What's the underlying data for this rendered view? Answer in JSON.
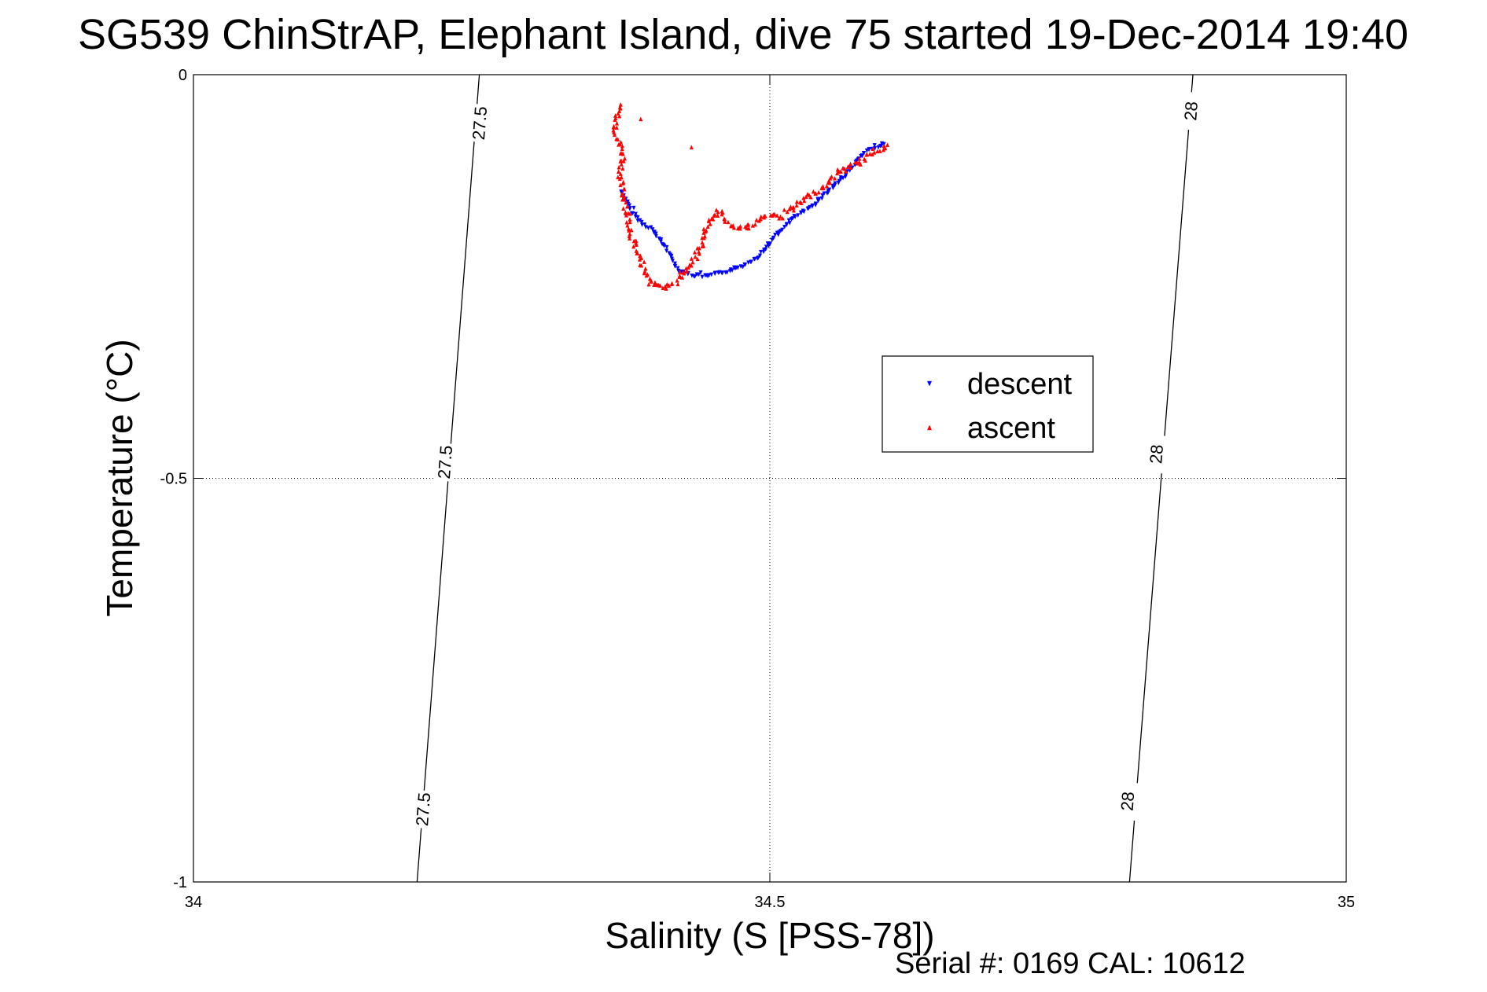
{
  "chart_data": {
    "type": "scatter",
    "title": "SG539 ChinStrAP, Elephant Island, dive 75 started 19-Dec-2014 19:40",
    "xlabel": "Salinity (S [PSS-78])",
    "ylabel": "Temperature (°C)",
    "xlim": [
      34,
      35
    ],
    "ylim": [
      -1,
      0
    ],
    "x_ticks": [
      34,
      34.5,
      35
    ],
    "x_tick_labels": [
      "34",
      "34.5",
      "35"
    ],
    "y_ticks": [
      0,
      -0.5,
      -1
    ],
    "y_tick_labels": [
      "0",
      "-0.5",
      "-1"
    ],
    "grid": true,
    "legend_position": "center-right",
    "footer": "Serial #: 0169 CAL: 10612",
    "density_contours": [
      {
        "label": "27.5",
        "points": [
          [
            34.248,
            0
          ],
          [
            34.194,
            -1
          ]
        ],
        "label_positions": [
          [
            34.248,
            -0.06
          ],
          [
            34.218,
            -0.48
          ],
          [
            34.199,
            -0.91
          ]
        ]
      },
      {
        "label": "28",
        "points": [
          [
            34.867,
            0
          ],
          [
            34.812,
            -1
          ]
        ],
        "label_positions": [
          [
            34.865,
            -0.045
          ],
          [
            34.835,
            -0.47
          ],
          [
            34.81,
            -0.9
          ]
        ]
      }
    ],
    "series": [
      {
        "name": "descent",
        "color": "#0000ff",
        "marker": "triangle-down",
        "path": [
          [
            34.372,
            -0.145
          ],
          [
            34.38,
            -0.17
          ],
          [
            34.39,
            -0.185
          ],
          [
            34.397,
            -0.19
          ],
          [
            34.41,
            -0.215
          ],
          [
            34.42,
            -0.24
          ],
          [
            34.43,
            -0.248
          ],
          [
            34.445,
            -0.25
          ],
          [
            34.46,
            -0.245
          ],
          [
            34.475,
            -0.238
          ],
          [
            34.49,
            -0.225
          ],
          [
            34.505,
            -0.2
          ],
          [
            34.52,
            -0.178
          ],
          [
            34.535,
            -0.165
          ],
          [
            34.55,
            -0.145
          ],
          [
            34.565,
            -0.125
          ],
          [
            34.58,
            -0.1
          ],
          [
            34.59,
            -0.09
          ],
          [
            34.6,
            -0.085
          ]
        ],
        "points": [
          [
            34.371,
            -0.145
          ],
          [
            34.382,
            -0.165
          ],
          [
            34.4,
            -0.195
          ],
          [
            34.44,
            -0.245
          ],
          [
            34.47,
            -0.24
          ],
          [
            34.5,
            -0.21
          ],
          [
            34.54,
            -0.16
          ],
          [
            34.58,
            -0.1
          ],
          [
            34.599,
            -0.086
          ]
        ]
      },
      {
        "name": "ascent",
        "color": "#ff0000",
        "marker": "triangle-up",
        "path": [
          [
            34.37,
            -0.04
          ],
          [
            34.366,
            -0.07
          ],
          [
            34.373,
            -0.1
          ],
          [
            34.37,
            -0.13
          ],
          [
            34.375,
            -0.16
          ],
          [
            34.38,
            -0.2
          ],
          [
            34.39,
            -0.24
          ],
          [
            34.398,
            -0.26
          ],
          [
            34.41,
            -0.265
          ],
          [
            34.42,
            -0.255
          ],
          [
            34.43,
            -0.235
          ],
          [
            34.44,
            -0.215
          ],
          [
            34.445,
            -0.19
          ],
          [
            34.455,
            -0.17
          ],
          [
            34.465,
            -0.185
          ],
          [
            34.48,
            -0.19
          ],
          [
            34.495,
            -0.175
          ],
          [
            34.51,
            -0.175
          ],
          [
            34.52,
            -0.165
          ],
          [
            34.535,
            -0.15
          ],
          [
            34.55,
            -0.135
          ],
          [
            34.56,
            -0.12
          ],
          [
            34.575,
            -0.11
          ],
          [
            34.59,
            -0.095
          ],
          [
            34.602,
            -0.087
          ]
        ],
        "points": [
          [
            34.37,
            -0.04
          ],
          [
            34.388,
            -0.055
          ],
          [
            34.432,
            -0.09
          ],
          [
            34.41,
            -0.265
          ],
          [
            34.455,
            -0.17
          ],
          [
            34.48,
            -0.19
          ],
          [
            34.52,
            -0.165
          ],
          [
            34.56,
            -0.12
          ],
          [
            34.602,
            -0.087
          ]
        ]
      }
    ]
  }
}
